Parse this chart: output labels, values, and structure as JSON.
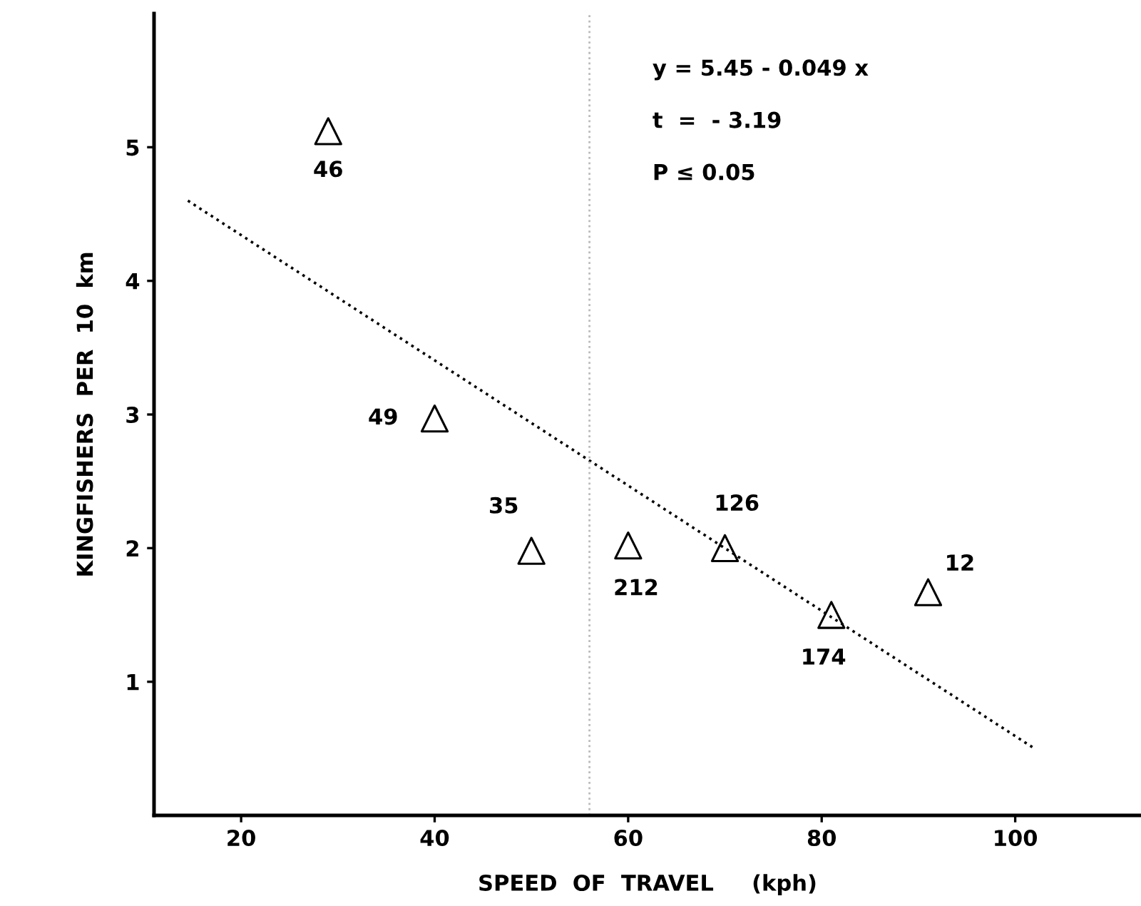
{
  "chart_data": {
    "type": "scatter",
    "xlabel": "SPEED  OF  TRAVEL     (kph)",
    "ylabel": "KINGFISHERS  PER  10  km",
    "xlim": [
      11,
      113
    ],
    "ylim": [
      0,
      6
    ],
    "xticks": [
      20,
      40,
      60,
      80,
      100
    ],
    "yticks": [
      1,
      2,
      3,
      4,
      5
    ],
    "grid": false,
    "marker": "triangle",
    "series": [
      {
        "color": "#000000",
        "x": [
          29,
          40,
          50,
          60,
          70,
          81,
          91
        ],
        "values": [
          5.12,
          2.97,
          1.98,
          2.02,
          2.0,
          1.5,
          1.67
        ]
      },
      {
        "type": "line",
        "color": "#000000",
        "line_style": "dotted",
        "marker": "none",
        "x": [
          14.5,
          102
        ],
        "values": [
          4.6,
          0.5
        ]
      }
    ],
    "ref_lines": [
      {
        "axis": "x",
        "value": 56,
        "color": "#bbbbbb",
        "line_style": "dotted"
      }
    ],
    "annotations": [
      {
        "text": "46",
        "x": 29,
        "y": 5.12
      },
      {
        "text": "49",
        "x": 40,
        "y": 2.97
      },
      {
        "text": "35",
        "x": 50,
        "y": 1.98
      },
      {
        "text": "212",
        "x": 60,
        "y": 2.02
      },
      {
        "text": "126",
        "x": 70,
        "y": 2.0
      },
      {
        "text": "174",
        "x": 81,
        "y": 1.5
      },
      {
        "text": "12",
        "x": 91,
        "y": 1.67
      },
      "y = 5.45 - 0.049 x",
      "t  =  - 3.19",
      "P ≤ 0.05"
    ]
  }
}
